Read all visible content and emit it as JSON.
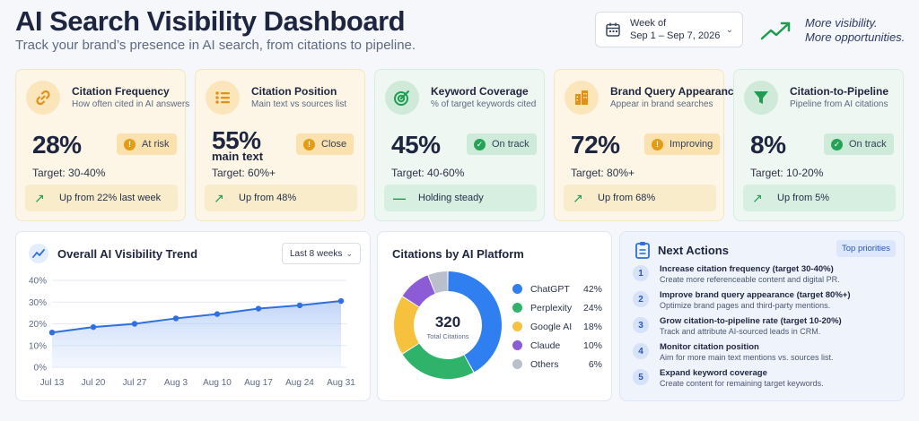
{
  "header": {
    "title": "AI Search Visibility Dashboard",
    "subtitle": "Track your brand’s presence in AI search, from citations to pipeline.",
    "date_label": "Week of",
    "date_range": "Sep 1 – Sep 7, 2026",
    "promo_line1": "More visibility.",
    "promo_line2": "More opportunities."
  },
  "kpis": [
    {
      "name": "Citation Frequency",
      "desc": "How often cited in AI answers",
      "value": "28%",
      "sub": "",
      "badge": "At risk",
      "target": "Target: 30-40%",
      "foot": "Up from 22% last week",
      "status": "warn",
      "icon": "link-icon"
    },
    {
      "name": "Citation Position",
      "desc": "Main text vs sources list",
      "value": "55%",
      "sub": "main text",
      "badge": "Close",
      "target": "Target: 60%+",
      "foot": "Up from 48%",
      "status": "warn",
      "icon": "list-icon"
    },
    {
      "name": "Keyword Coverage",
      "desc": "% of target keywords cited",
      "value": "45%",
      "sub": "",
      "badge": "On track",
      "target": "Target: 40-60%",
      "foot": "Holding steady",
      "status": "ok",
      "icon": "target-icon"
    },
    {
      "name": "Brand Query Appearance",
      "desc": "Appear in brand searches",
      "value": "72%",
      "sub": "",
      "badge": "Improving",
      "target": "Target: 80%+",
      "foot": "Up from 68%",
      "status": "warn",
      "icon": "building-icon"
    },
    {
      "name": "Citation-to-Pipeline",
      "desc": "Pipeline from AI citations",
      "value": "8%",
      "sub": "",
      "badge": "On track",
      "target": "Target: 10-20%",
      "foot": "Up from 5%",
      "status": "ok",
      "icon": "funnel-icon"
    }
  ],
  "trend": {
    "title": "Overall AI Visibility Trend",
    "range": "Last 8 weeks"
  },
  "platforms": {
    "title": "Citations by AI Platform",
    "total": "320",
    "total_label": "Total Citations"
  },
  "actions": {
    "title": "Next Actions",
    "tag": "Top priorities",
    "items": [
      {
        "n": "1",
        "head": "Increase citation frequency (target 30-40%)",
        "desc": "Create more referenceable content and digital PR."
      },
      {
        "n": "2",
        "head": "Improve brand query appearance (target 80%+)",
        "desc": "Optimize brand pages and third-party mentions."
      },
      {
        "n": "3",
        "head": "Grow citation-to-pipeline rate (target 10-20%)",
        "desc": "Track and attribute AI-sourced leads in CRM."
      },
      {
        "n": "4",
        "head": "Monitor citation position",
        "desc": "Aim for more main text mentions vs. sources list."
      },
      {
        "n": "5",
        "head": "Expand keyword coverage",
        "desc": "Create content for remaining target keywords."
      }
    ]
  },
  "colors": {
    "accent": "#2f6fe0",
    "warn": "#e59b12",
    "ok": "#24a357"
  },
  "chart_data": [
    {
      "type": "area",
      "title": "Overall AI Visibility Trend",
      "categories": [
        "Jul 13",
        "Jul 20",
        "Jul 27",
        "Aug 3",
        "Aug 10",
        "Aug 17",
        "Aug 24",
        "Aug 31"
      ],
      "values": [
        16,
        18.5,
        20,
        22.5,
        24.5,
        27,
        28.5,
        30.5
      ],
      "yticks": [
        "0%",
        "10%",
        "20%",
        "30%",
        "40%"
      ],
      "ylim": [
        0,
        40
      ],
      "grid": true
    },
    {
      "type": "pie",
      "title": "Citations by AI Platform",
      "labels": [
        "ChatGPT",
        "Perplexity",
        "Google AI",
        "Claude",
        "Others"
      ],
      "values": [
        42,
        24,
        18,
        10,
        6
      ],
      "value_labels": [
        "42%",
        "24%",
        "18%",
        "10%",
        "6%"
      ],
      "colors": [
        "#2f7ff0",
        "#2fb36a",
        "#f6c23e",
        "#8c5bd6",
        "#b9c0cc"
      ]
    }
  ]
}
